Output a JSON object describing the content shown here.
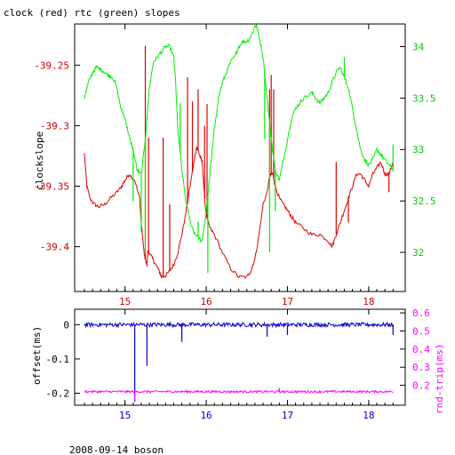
{
  "title": "clock (red) rtc (green) slopes",
  "footer": "2008-09-14 boson",
  "colors": {
    "red": "#dd0000",
    "green": "#00ee00",
    "blue": "#0000cc",
    "magenta": "#ff00ff",
    "axis": "#000000"
  },
  "chart_data": [
    {
      "type": "line",
      "title": "clock (red) rtc (green) slopes",
      "ylabel": "clockslope",
      "x_ticks": [
        15,
        16,
        17,
        18
      ],
      "xlim": [
        14.38,
        18.45
      ],
      "y_left": {
        "lim": [
          -39.437,
          -39.216
        ],
        "ticks": [
          -39.25,
          -39.3,
          -39.35,
          -39.4
        ],
        "tick_labels": [
          "-39.25",
          "-39.3",
          "-39.35",
          "-39.4"
        ]
      },
      "y_right": {
        "lim": [
          31.62,
          34.22
        ],
        "ticks": [
          32,
          32.5,
          33,
          33.5,
          34
        ],
        "tick_labels": [
          "32",
          "32.5",
          "33",
          "33.5",
          "34"
        ]
      },
      "series": [
        {
          "name": "clock",
          "axis": "left",
          "color": "#dd0000",
          "x": [
            14.5,
            14.53,
            14.57,
            14.62,
            14.68,
            14.75,
            14.82,
            14.9,
            14.96,
            15.0,
            15.05,
            15.12,
            15.18,
            15.2,
            15.22,
            15.24,
            15.26,
            15.27,
            15.28,
            15.3,
            15.34,
            15.38,
            15.42,
            15.45,
            15.5,
            15.55,
            15.6,
            15.65,
            15.7,
            15.75,
            15.8,
            15.85,
            15.88,
            15.9,
            15.92,
            15.95,
            15.98,
            16.0,
            16.05,
            16.1,
            16.2,
            16.3,
            16.4,
            16.5,
            16.55,
            16.6,
            16.65,
            16.7,
            16.75,
            16.78,
            16.8,
            16.82,
            16.85,
            16.9,
            16.95,
            17.0,
            17.05,
            17.1,
            17.2,
            17.3,
            17.4,
            17.5,
            17.55,
            17.6,
            17.65,
            17.7,
            17.75,
            17.8,
            17.85,
            17.9,
            17.95,
            18.0,
            18.05,
            18.1,
            18.15,
            18.2,
            18.25,
            18.3
          ],
          "y": [
            -39.323,
            -39.35,
            -39.36,
            -39.365,
            -39.367,
            -39.365,
            -39.36,
            -39.355,
            -39.35,
            -39.345,
            -39.34,
            -39.345,
            -39.36,
            -39.38,
            -39.395,
            -39.408,
            -39.413,
            -39.415,
            -39.404,
            -39.405,
            -39.41,
            -39.415,
            -39.42,
            -39.425,
            -39.424,
            -39.42,
            -39.415,
            -39.405,
            -39.39,
            -39.372,
            -39.35,
            -39.33,
            -39.318,
            -39.32,
            -39.325,
            -39.33,
            -39.36,
            -39.375,
            -39.385,
            -39.39,
            -39.405,
            -39.418,
            -39.425,
            -39.425,
            -39.42,
            -39.41,
            -39.39,
            -39.365,
            -39.355,
            -39.342,
            -39.34,
            -39.34,
            -39.35,
            -39.36,
            -39.365,
            -39.37,
            -39.375,
            -39.38,
            -39.385,
            -39.39,
            -39.39,
            -39.395,
            -39.4,
            -39.39,
            -39.38,
            -39.37,
            -39.36,
            -39.35,
            -39.34,
            -39.34,
            -39.345,
            -39.35,
            -39.34,
            -39.335,
            -39.33,
            -39.34,
            -39.34,
            -39.33
          ],
          "spikes": [
            [
              15.25,
              -39.234
            ],
            [
              15.29,
              -39.31
            ],
            [
              15.47,
              -39.31
            ],
            [
              15.55,
              -39.365
            ],
            [
              15.77,
              -39.26
            ],
            [
              15.83,
              -39.28
            ],
            [
              15.9,
              -39.27
            ],
            [
              15.98,
              -39.3
            ],
            [
              16.01,
              -39.282
            ],
            [
              16.78,
              -39.27
            ],
            [
              16.8,
              -39.258
            ],
            [
              16.83,
              -39.27
            ],
            [
              17.6,
              -39.33
            ],
            [
              17.75,
              -39.38
            ],
            [
              18.25,
              -39.355
            ]
          ]
        },
        {
          "name": "rtc",
          "axis": "right",
          "color": "#00ee00",
          "x": [
            14.5,
            14.55,
            14.6,
            14.65,
            14.7,
            14.75,
            14.8,
            14.85,
            14.9,
            14.95,
            15.0,
            15.03,
            15.06,
            15.1,
            15.15,
            15.2,
            15.25,
            15.3,
            15.35,
            15.4,
            15.45,
            15.5,
            15.55,
            15.6,
            15.62,
            15.65,
            15.7,
            15.75,
            15.8,
            15.85,
            15.9,
            15.95,
            16.0,
            16.05,
            16.1,
            16.15,
            16.2,
            16.25,
            16.3,
            16.35,
            16.4,
            16.45,
            16.5,
            16.55,
            16.6,
            16.62,
            16.65,
            16.7,
            16.75,
            16.8,
            16.85,
            16.9,
            16.95,
            17.0,
            17.05,
            17.1,
            17.15,
            17.2,
            17.3,
            17.35,
            17.4,
            17.45,
            17.5,
            17.55,
            17.6,
            17.65,
            17.7,
            17.75,
            17.8,
            17.85,
            17.9,
            17.95,
            18.0,
            18.05,
            18.1,
            18.15,
            18.2,
            18.25,
            18.3
          ],
          "y": [
            33.5,
            33.65,
            33.75,
            33.8,
            33.78,
            33.75,
            33.72,
            33.7,
            33.6,
            33.4,
            33.3,
            33.2,
            33.1,
            33.0,
            32.8,
            32.75,
            33.1,
            33.6,
            33.85,
            33.9,
            33.95,
            34.0,
            34.0,
            33.9,
            33.7,
            33.2,
            32.8,
            32.5,
            32.3,
            32.2,
            32.15,
            32.1,
            32.4,
            32.8,
            33.2,
            33.5,
            33.65,
            33.75,
            33.85,
            33.9,
            34.0,
            34.05,
            34.05,
            34.1,
            34.2,
            34.2,
            34.1,
            33.9,
            33.5,
            33.1,
            32.8,
            32.7,
            32.9,
            33.1,
            33.3,
            33.4,
            33.45,
            33.5,
            33.55,
            33.5,
            33.45,
            33.5,
            33.55,
            33.65,
            33.75,
            33.8,
            33.7,
            33.6,
            33.4,
            33.2,
            33.0,
            32.9,
            32.85,
            32.9,
            33.0,
            32.95,
            32.9,
            32.85,
            32.8
          ],
          "spikes": [
            [
              15.1,
              32.5
            ],
            [
              15.2,
              32.2
            ],
            [
              15.25,
              31.98
            ],
            [
              15.68,
              33.45
            ],
            [
              15.9,
              32.3
            ],
            [
              16.02,
              31.8
            ],
            [
              16.72,
              33.1
            ],
            [
              16.78,
              32.0
            ],
            [
              16.85,
              32.4
            ],
            [
              17.7,
              33.9
            ],
            [
              18.3,
              33.05
            ]
          ]
        }
      ]
    },
    {
      "type": "line",
      "ylabel": "offset(ms)",
      "ylabel_right": "rnd-trip(ms)",
      "x_ticks": [
        15,
        16,
        17,
        18
      ],
      "xlim": [
        14.38,
        18.45
      ],
      "y_left": {
        "lim": [
          -0.235,
          0.045
        ],
        "ticks": [
          0,
          -0.1,
          -0.2
        ],
        "tick_labels": [
          "0",
          "-0.1",
          "-0.2"
        ]
      },
      "y_right": {
        "lim": [
          0.09,
          0.62
        ],
        "ticks": [
          0.2,
          0.3,
          0.4,
          0.5,
          0.6
        ],
        "tick_labels": [
          "0.2",
          "0.3",
          "0.4",
          "0.5",
          "0.6"
        ]
      },
      "series": [
        {
          "name": "offset",
          "axis": "left",
          "color": "#0000cc",
          "baseline": 0.0,
          "noise": 0.006,
          "spikes": [
            [
              15.12,
              -0.225
            ],
            [
              15.27,
              -0.12
            ],
            [
              15.7,
              -0.05
            ],
            [
              16.75,
              -0.035
            ],
            [
              17.0,
              -0.03
            ],
            [
              18.3,
              -0.03
            ]
          ]
        },
        {
          "name": "rnd-trip",
          "axis": "right",
          "color": "#ff00ff",
          "baseline": 0.165,
          "noise": 0.006,
          "spikes": [
            [
              15.12,
              0.115
            ],
            [
              16.9,
              0.185
            ]
          ]
        }
      ]
    }
  ]
}
